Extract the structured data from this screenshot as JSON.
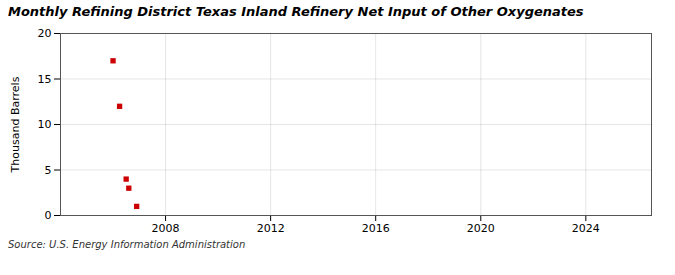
{
  "chart_data": {
    "type": "scatter",
    "title": "Monthly Refining District Texas Inland Refinery Net Input of Other Oxygenates",
    "ylabel": "Thousand Barrels",
    "source": "Source: U.S. Energy Information Administration",
    "x": [
      2006.0,
      2006.25,
      2006.5,
      2006.6,
      2006.9
    ],
    "values": [
      17.0,
      12.0,
      4.0,
      3.0,
      1.0
    ],
    "color": "#cc0000",
    "marker": "square",
    "xlim": [
      2004.0,
      2026.5
    ],
    "ylim": [
      0,
      20
    ],
    "xticks": [
      2008,
      2012,
      2016,
      2020,
      2024
    ],
    "yticks": [
      0,
      5,
      10,
      15,
      20
    ],
    "grid": true
  }
}
